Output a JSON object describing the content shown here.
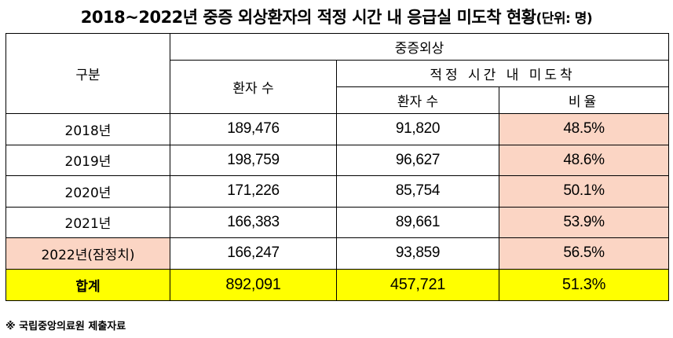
{
  "title": "2018~2022년 중증 외상환자의 적정 시간 내 응급실 미도착 현황",
  "title_unit": "(단위: 명)",
  "headers": {
    "category": "구분",
    "group": "중증외상",
    "patients": "환자 수",
    "not_arrived": "적정 시간 내 미도착",
    "not_arrived_patients": "환자 수",
    "ratio": "비율"
  },
  "rows": [
    {
      "year": "2018년",
      "patients": "189,476",
      "not_arrived": "91,820",
      "ratio": "48.5%"
    },
    {
      "year": "2019년",
      "patients": "198,759",
      "not_arrived": "96,627",
      "ratio": "48.6%"
    },
    {
      "year": "2020년",
      "patients": "171,226",
      "not_arrived": "85,754",
      "ratio": "50.1%"
    },
    {
      "year": "2021년",
      "patients": "166,383",
      "not_arrived": "89,661",
      "ratio": "53.9%"
    },
    {
      "year": "2022년(잠정치)",
      "patients": "166,247",
      "not_arrived": "93,859",
      "ratio": "56.5%"
    }
  ],
  "total": {
    "label": "합계",
    "patients": "892,091",
    "not_arrived": "457,721",
    "ratio": "51.3%"
  },
  "footer": "※ 국립중앙의료원 제출자료",
  "colors": {
    "highlight_pink": "#fbd5c4",
    "total_yellow": "#ffff00"
  }
}
